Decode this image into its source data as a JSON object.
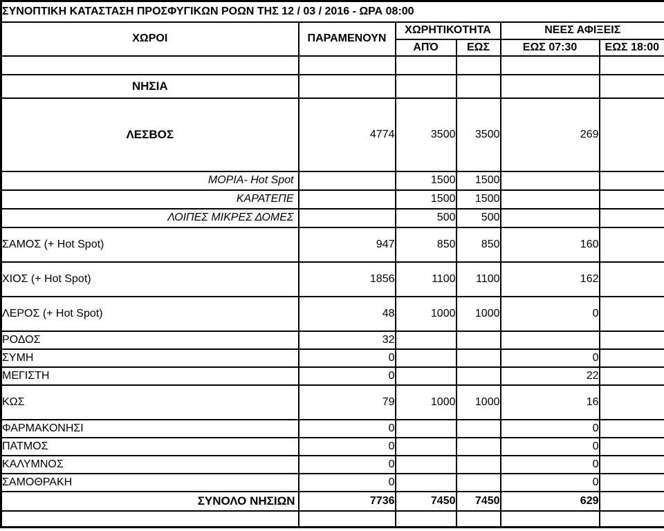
{
  "title": "ΣΥΝΟΠΤΙΚΗ ΚΑΤΑΣΤΑΣΗ ΠΡΟΣΦΥΓΙΚΩΝ ΡΟΩΝ ΤΗΣ  12 / 03 / 2016 - ΩΡΑ 08:00",
  "header": {
    "col_places": "ΧΩΡΟΙ",
    "col_remaining": "ΠΑΡΑΜΕΝΟΥΝ",
    "col_capacity": "ΧΩΡΗΤΙΚΟΤΗΤΑ",
    "col_capacity_from": "ΑΠΌ",
    "col_capacity_to": "ΕΩΣ",
    "col_new_arrivals": "ΝΕΕΣ ΑΦΙΞΕΙΣ",
    "col_arrivals_0730": "ΕΩΣ 07:30",
    "col_arrivals_1800": "ΕΩΣ 18:00"
  },
  "table": {
    "columns": [
      "ΧΩΡΟΙ",
      "ΠΑΡΑΜΕΝΟΥΝ",
      "ΑΠΌ",
      "ΕΩΣ",
      "ΕΩΣ 07:30",
      "ΕΩΣ 18:00"
    ],
    "rows": [
      {
        "kind": "spacer",
        "label": "",
        "values": [
          "",
          "",
          "",
          "",
          ""
        ]
      },
      {
        "kind": "section",
        "label": "ΝΗΣΙΑ",
        "values": [
          "",
          "",
          "",
          "",
          ""
        ]
      },
      {
        "kind": "primary",
        "label": "ΛΕΣΒΟΣ",
        "values": [
          "4774",
          "3500",
          "3500",
          "269",
          ""
        ]
      },
      {
        "kind": "sub",
        "label": "ΜΟΡΙΑ- Hot Spot",
        "values": [
          "",
          "1500",
          "1500",
          "",
          ""
        ]
      },
      {
        "kind": "sub",
        "label": "ΚΑΡΑΤΕΠΕ",
        "values": [
          "",
          "1500",
          "1500",
          "",
          ""
        ]
      },
      {
        "kind": "sub",
        "label": "ΛΟΙΠΕΣ ΜΙΚΡΕΣ ΔΟΜΕΣ",
        "values": [
          "",
          "500",
          "500",
          "",
          ""
        ]
      },
      {
        "kind": "tall",
        "label": "ΣΑΜΟΣ (+ Hot Spot)",
        "values": [
          "947",
          "850",
          "850",
          "160",
          ""
        ]
      },
      {
        "kind": "tall",
        "label": "ΧΙΟΣ (+ Hot Spot)",
        "values": [
          "1856",
          "1100",
          "1100",
          "162",
          ""
        ]
      },
      {
        "kind": "tall",
        "label": "ΛΕΡΟΣ (+ Hot Spot)",
        "values": [
          "48",
          "1000",
          "1000",
          "0",
          ""
        ]
      },
      {
        "kind": "plain",
        "label": "ΡΟΔΟΣ",
        "values": [
          "32",
          "",
          "",
          "",
          ""
        ]
      },
      {
        "kind": "plain",
        "label": "ΣΥΜΗ",
        "values": [
          "0",
          "",
          "",
          "0",
          ""
        ]
      },
      {
        "kind": "plain",
        "label": "ΜΕΓΙΣΤΗ",
        "values": [
          "0",
          "",
          "",
          "22",
          ""
        ]
      },
      {
        "kind": "tall",
        "label": "ΚΩΣ",
        "values": [
          "79",
          "1000",
          "1000",
          "16",
          ""
        ]
      },
      {
        "kind": "plain",
        "label": "ΦΑΡΜΑΚΟΝΗΣΙ",
        "values": [
          "0",
          "",
          "",
          "0",
          ""
        ]
      },
      {
        "kind": "plain",
        "label": "ΠΑΤΜΟΣ",
        "values": [
          "0",
          "",
          "",
          "0",
          ""
        ]
      },
      {
        "kind": "plain",
        "label": "ΚΑΛΥΜΝΟΣ",
        "values": [
          "0",
          "",
          "",
          "0",
          ""
        ]
      },
      {
        "kind": "plain",
        "label": "ΣΑΜΟΘΡΑΚΗ",
        "values": [
          "0",
          "",
          "",
          "0",
          ""
        ]
      },
      {
        "kind": "total",
        "label": "ΣΥΝΟΛΟ ΝΗΣΙΩΝ",
        "values": [
          "7736",
          "7450",
          "7450",
          "629",
          ""
        ]
      },
      {
        "kind": "spacer-end",
        "label": "",
        "values": [
          "",
          "",
          "",
          "",
          ""
        ]
      }
    ]
  }
}
